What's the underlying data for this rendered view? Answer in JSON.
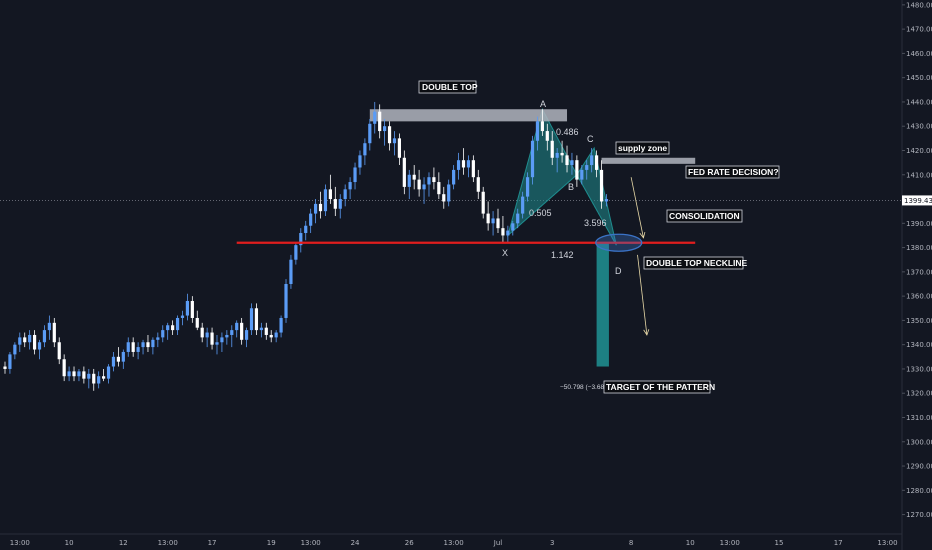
{
  "chart_data": {
    "type": "candlestick",
    "colors": {
      "background": "#131722",
      "up": "#5b9cf6",
      "down": "#ffffff",
      "neckline": "#e01e1e",
      "pattern_fill": "#1f8c8e",
      "supply_zone": "#b2b5be",
      "target_bar": "#1f8c8e",
      "arrow": "#e8d9a8",
      "ellipse": "#3b73c7"
    },
    "y_axis": {
      "ylim": [
        1262,
        1482
      ],
      "ticks": [
        "1270.000",
        "1280.000",
        "1290.000",
        "1300.000",
        "1310.000",
        "1320.000",
        "1330.000",
        "1340.000",
        "1350.000",
        "1360.000",
        "1370.000",
        "1380.000",
        "1390.000",
        "1400.000",
        "1410.000",
        "1420.000",
        "1430.000",
        "1440.000",
        "1450.000",
        "1460.000",
        "1470.000",
        "1480.000"
      ],
      "last_price": "1399.430"
    },
    "x_axis": {
      "ticks": [
        {
          "label": "13:00",
          "i": 3
        },
        {
          "label": "10",
          "i": 13
        },
        {
          "label": "12",
          "i": 24
        },
        {
          "label": "13:00",
          "i": 33
        },
        {
          "label": "17",
          "i": 42
        },
        {
          "label": "19",
          "i": 54
        },
        {
          "label": "13:00",
          "i": 62
        },
        {
          "label": "24",
          "i": 71
        },
        {
          "label": "26",
          "i": 82
        },
        {
          "label": "13:00",
          "i": 91
        },
        {
          "label": "Jul",
          "i": 100
        },
        {
          "label": "3",
          "i": 111
        },
        {
          "label": "8",
          "i": 127
        },
        {
          "label": "10",
          "i": 139
        },
        {
          "label": "13:00",
          "i": 147
        },
        {
          "label": "15",
          "i": 157
        },
        {
          "label": "17",
          "i": 169
        },
        {
          "label": "13:00",
          "i": 179
        }
      ]
    },
    "candles": [
      [
        1331,
        1333,
        1328,
        1330
      ],
      [
        1330,
        1337,
        1328,
        1336
      ],
      [
        1336,
        1341,
        1334,
        1340
      ],
      [
        1340,
        1345,
        1337,
        1343
      ],
      [
        1343,
        1345,
        1339,
        1341
      ],
      [
        1341,
        1346,
        1338,
        1344
      ],
      [
        1344,
        1346,
        1336,
        1338
      ],
      [
        1338,
        1342,
        1334,
        1341
      ],
      [
        1341,
        1348,
        1339,
        1346
      ],
      [
        1346,
        1352,
        1342,
        1349
      ],
      [
        1349,
        1351,
        1339,
        1341
      ],
      [
        1341,
        1343,
        1332,
        1334
      ],
      [
        1334,
        1336,
        1325,
        1327
      ],
      [
        1327,
        1331,
        1325,
        1329
      ],
      [
        1329,
        1331,
        1325,
        1327
      ],
      [
        1327,
        1330,
        1325,
        1329
      ],
      [
        1329,
        1331,
        1324,
        1326
      ],
      [
        1326,
        1330,
        1322,
        1328
      ],
      [
        1328,
        1330,
        1321,
        1324
      ],
      [
        1324,
        1329,
        1322,
        1327
      ],
      [
        1327,
        1330,
        1325,
        1326
      ],
      [
        1326,
        1332,
        1324,
        1331
      ],
      [
        1331,
        1337,
        1329,
        1335
      ],
      [
        1335,
        1339,
        1331,
        1333
      ],
      [
        1333,
        1338,
        1330,
        1337
      ],
      [
        1337,
        1343,
        1335,
        1341
      ],
      [
        1341,
        1343,
        1335,
        1337
      ],
      [
        1337,
        1341,
        1334,
        1339
      ],
      [
        1339,
        1342,
        1336,
        1341
      ],
      [
        1341,
        1344,
        1337,
        1339
      ],
      [
        1339,
        1343,
        1336,
        1342
      ],
      [
        1342,
        1345,
        1339,
        1343
      ],
      [
        1343,
        1348,
        1341,
        1346
      ],
      [
        1346,
        1349,
        1342,
        1348
      ],
      [
        1348,
        1350,
        1344,
        1346
      ],
      [
        1346,
        1352,
        1344,
        1351
      ],
      [
        1351,
        1354,
        1348,
        1352
      ],
      [
        1352,
        1361,
        1350,
        1358
      ],
      [
        1358,
        1360,
        1349,
        1351
      ],
      [
        1351,
        1354,
        1346,
        1347
      ],
      [
        1347,
        1349,
        1341,
        1343
      ],
      [
        1343,
        1347,
        1339,
        1345
      ],
      [
        1345,
        1347,
        1338,
        1340
      ],
      [
        1340,
        1344,
        1336,
        1341
      ],
      [
        1341,
        1345,
        1337,
        1343
      ],
      [
        1343,
        1346,
        1340,
        1344
      ],
      [
        1344,
        1348,
        1339,
        1346
      ],
      [
        1346,
        1350,
        1343,
        1349
      ],
      [
        1349,
        1351,
        1340,
        1342
      ],
      [
        1342,
        1347,
        1339,
        1346
      ],
      [
        1346,
        1357,
        1344,
        1355
      ],
      [
        1355,
        1357,
        1344,
        1346
      ],
      [
        1346,
        1349,
        1343,
        1347
      ],
      [
        1347,
        1349,
        1342,
        1344
      ],
      [
        1344,
        1346,
        1341,
        1343
      ],
      [
        1343,
        1346,
        1341,
        1345
      ],
      [
        1345,
        1352,
        1343,
        1351
      ],
      [
        1351,
        1367,
        1349,
        1365
      ],
      [
        1365,
        1377,
        1363,
        1375
      ],
      [
        1375,
        1382,
        1373,
        1381
      ],
      [
        1381,
        1388,
        1378,
        1386
      ],
      [
        1386,
        1391,
        1383,
        1389
      ],
      [
        1389,
        1396,
        1386,
        1394
      ],
      [
        1394,
        1400,
        1390,
        1398
      ],
      [
        1398,
        1403,
        1392,
        1395
      ],
      [
        1395,
        1406,
        1393,
        1404
      ],
      [
        1404,
        1410,
        1398,
        1400
      ],
      [
        1400,
        1405,
        1393,
        1396
      ],
      [
        1396,
        1402,
        1392,
        1400
      ],
      [
        1400,
        1406,
        1397,
        1404
      ],
      [
        1404,
        1409,
        1400,
        1407
      ],
      [
        1407,
        1415,
        1404,
        1413
      ],
      [
        1413,
        1420,
        1410,
        1418
      ],
      [
        1418,
        1425,
        1414,
        1423
      ],
      [
        1423,
        1433,
        1420,
        1431
      ],
      [
        1431,
        1440,
        1427,
        1436
      ],
      [
        1436,
        1439,
        1425,
        1428
      ],
      [
        1428,
        1433,
        1422,
        1430
      ],
      [
        1430,
        1432,
        1420,
        1423
      ],
      [
        1423,
        1428,
        1418,
        1425
      ],
      [
        1425,
        1427,
        1414,
        1417
      ],
      [
        1417,
        1420,
        1402,
        1405
      ],
      [
        1405,
        1412,
        1400,
        1410
      ],
      [
        1410,
        1414,
        1404,
        1408
      ],
      [
        1408,
        1412,
        1401,
        1404
      ],
      [
        1404,
        1409,
        1398,
        1406
      ],
      [
        1406,
        1411,
        1401,
        1409
      ],
      [
        1409,
        1413,
        1404,
        1407
      ],
      [
        1407,
        1411,
        1400,
        1402
      ],
      [
        1402,
        1405,
        1396,
        1399
      ],
      [
        1399,
        1408,
        1397,
        1406
      ],
      [
        1406,
        1414,
        1404,
        1412
      ],
      [
        1412,
        1419,
        1408,
        1416
      ],
      [
        1416,
        1421,
        1410,
        1413
      ],
      [
        1413,
        1418,
        1409,
        1416
      ],
      [
        1416,
        1418,
        1407,
        1409
      ],
      [
        1409,
        1412,
        1400,
        1403
      ],
      [
        1403,
        1405,
        1392,
        1394
      ],
      [
        1394,
        1399,
        1387,
        1390
      ],
      [
        1390,
        1395,
        1385,
        1392
      ],
      [
        1392,
        1396,
        1386,
        1388
      ],
      [
        1388,
        1393,
        1382,
        1385
      ],
      [
        1385,
        1389,
        1382,
        1387
      ],
      [
        1387,
        1391,
        1385,
        1390
      ],
      [
        1390,
        1396,
        1388,
        1394
      ],
      [
        1394,
        1403,
        1392,
        1401
      ],
      [
        1401,
        1411,
        1399,
        1409
      ],
      [
        1409,
        1426,
        1406,
        1424
      ],
      [
        1424,
        1434,
        1420,
        1432
      ],
      [
        1432,
        1437,
        1426,
        1428
      ],
      [
        1428,
        1431,
        1420,
        1424
      ],
      [
        1424,
        1428,
        1414,
        1417
      ],
      [
        1417,
        1421,
        1411,
        1419
      ],
      [
        1419,
        1424,
        1415,
        1418
      ],
      [
        1418,
        1422,
        1411,
        1414
      ],
      [
        1414,
        1419,
        1410,
        1416
      ],
      [
        1416,
        1418,
        1405,
        1408
      ],
      [
        1408,
        1414,
        1406,
        1412
      ],
      [
        1412,
        1416,
        1408,
        1414
      ],
      [
        1414,
        1421,
        1411,
        1418
      ],
      [
        1418,
        1420,
        1409,
        1412
      ],
      [
        1412,
        1416,
        1396,
        1399
      ],
      [
        1399,
        1402,
        1397,
        1400
      ]
    ],
    "annotations": {
      "double_top_label": "DOUBLE TOP",
      "supply_zone_label": "supply zone",
      "fed_label": "FED RATE DECISION?",
      "consolidation_label": "CONSOLIDATION",
      "neckline_label": "DOUBLE TOP NECKLINE",
      "target_label": "TARGET OF THE PATTERN",
      "measure_label": "−50.798 (−3.68",
      "points": {
        "X": "X",
        "A": "A",
        "B": "B",
        "C": "C",
        "D": "D"
      },
      "ratios": {
        "xb": "0.505",
        "ac": "0.486",
        "bd": "3.596",
        "xd": "1.142"
      }
    }
  }
}
